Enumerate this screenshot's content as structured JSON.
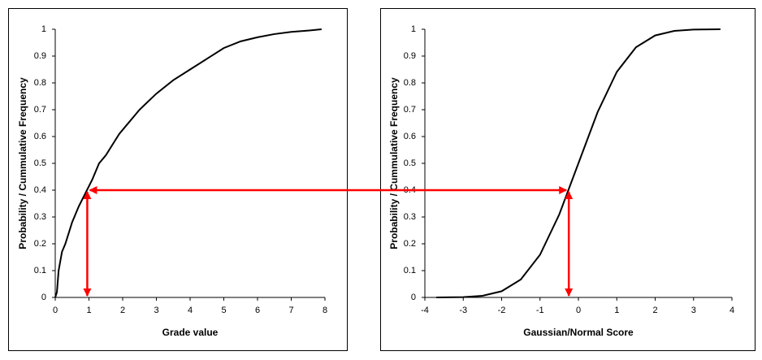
{
  "chart_data": [
    {
      "type": "line",
      "xlabel": "Grade value",
      "ylabel": "Probability / Cummulative Frequency",
      "x": [
        0,
        0.05,
        0.1,
        0.2,
        0.3,
        0.5,
        0.7,
        0.9,
        1.1,
        1.3,
        1.5,
        1.7,
        1.9,
        2.1,
        2.5,
        3,
        3.5,
        4,
        4.5,
        5,
        5.5,
        6,
        6.5,
        7,
        7.5,
        7.9
      ],
      "values": [
        0,
        0.02,
        0.1,
        0.17,
        0.2,
        0.28,
        0.34,
        0.39,
        0.44,
        0.5,
        0.53,
        0.57,
        0.61,
        0.64,
        0.7,
        0.76,
        0.81,
        0.85,
        0.89,
        0.93,
        0.955,
        0.97,
        0.982,
        0.99,
        0.995,
        1
      ],
      "color": "#000000",
      "xlim": [
        0,
        8
      ],
      "xticks": [
        0,
        1,
        2,
        3,
        4,
        5,
        6,
        7,
        8
      ],
      "ylim": [
        0,
        1
      ],
      "yticks": [
        0,
        0.1,
        0.2,
        0.3,
        0.4,
        0.5,
        0.6,
        0.7,
        0.8,
        0.9,
        1
      ],
      "marker": {
        "x": 0.95,
        "y": 0.4,
        "color": "#ff0000"
      }
    },
    {
      "type": "line",
      "xlabel": "Gaussian/Normal Score",
      "ylabel": "Probability / Cummulative Frequency",
      "x": [
        -3.7,
        -3,
        -2.5,
        -2,
        -1.5,
        -1,
        -0.5,
        0,
        0.5,
        1,
        1.5,
        2,
        2.5,
        3,
        3.7
      ],
      "values": [
        0,
        0.001,
        0.006,
        0.023,
        0.067,
        0.159,
        0.309,
        0.5,
        0.691,
        0.841,
        0.933,
        0.977,
        0.994,
        0.999,
        1
      ],
      "color": "#000000",
      "xlim": [
        -4,
        4
      ],
      "xticks": [
        -4,
        -3,
        -2,
        -1,
        0,
        1,
        2,
        3,
        4
      ],
      "ylim": [
        0,
        1
      ],
      "yticks": [
        0,
        0.1,
        0.2,
        0.3,
        0.4,
        0.5,
        0.6,
        0.7,
        0.8,
        0.9,
        1
      ],
      "marker": {
        "x": -0.25,
        "y": 0.4,
        "color": "#ff0000"
      }
    }
  ]
}
